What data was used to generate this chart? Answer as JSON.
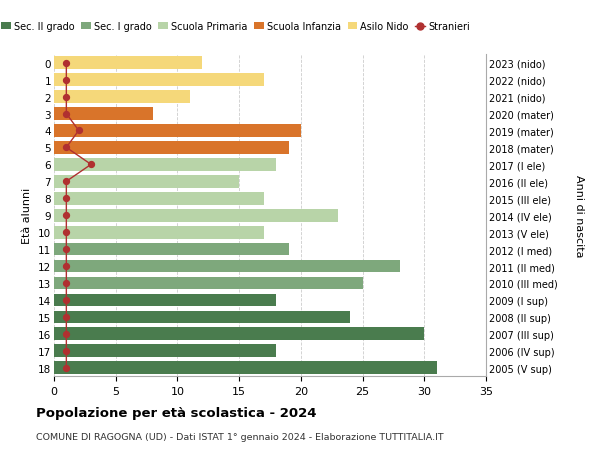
{
  "ages": [
    18,
    17,
    16,
    15,
    14,
    13,
    12,
    11,
    10,
    9,
    8,
    7,
    6,
    5,
    4,
    3,
    2,
    1,
    0
  ],
  "years": [
    "2005 (V sup)",
    "2006 (IV sup)",
    "2007 (III sup)",
    "2008 (II sup)",
    "2009 (I sup)",
    "2010 (III med)",
    "2011 (II med)",
    "2012 (I med)",
    "2013 (V ele)",
    "2014 (IV ele)",
    "2015 (III ele)",
    "2016 (II ele)",
    "2017 (I ele)",
    "2018 (mater)",
    "2019 (mater)",
    "2020 (mater)",
    "2021 (nido)",
    "2022 (nido)",
    "2023 (nido)"
  ],
  "bar_values": [
    31,
    18,
    30,
    24,
    18,
    25,
    28,
    19,
    17,
    23,
    17,
    15,
    18,
    19,
    20,
    8,
    11,
    17,
    12
  ],
  "bar_colors": [
    "#4a7c4e",
    "#4a7c4e",
    "#4a7c4e",
    "#4a7c4e",
    "#4a7c4e",
    "#7ea87c",
    "#7ea87c",
    "#7ea87c",
    "#b8d4a8",
    "#b8d4a8",
    "#b8d4a8",
    "#b8d4a8",
    "#b8d4a8",
    "#d9742a",
    "#d9742a",
    "#d9742a",
    "#f5d87a",
    "#f5d87a",
    "#f5d87a"
  ],
  "stranieri_values": [
    1,
    1,
    1,
    1,
    1,
    1,
    1,
    1,
    1,
    1,
    1,
    1,
    3,
    1,
    2,
    1,
    1,
    1,
    1
  ],
  "stranieri_color": "#b03030",
  "legend_labels": [
    "Sec. II grado",
    "Sec. I grado",
    "Scuola Primaria",
    "Scuola Infanzia",
    "Asilo Nido",
    "Stranieri"
  ],
  "legend_colors": [
    "#4a7c4e",
    "#7ea87c",
    "#b8d4a8",
    "#d9742a",
    "#f5d87a",
    "#b03030"
  ],
  "title": "Popolazione per età scolastica - 2024",
  "subtitle": "COMUNE DI RAGOGNA (UD) - Dati ISTAT 1° gennaio 2024 - Elaborazione TUTTITALIA.IT",
  "ylabel_left": "Età alunni",
  "ylabel_right": "Anni di nascita",
  "xlim": [
    0,
    35
  ],
  "xticks": [
    0,
    5,
    10,
    15,
    20,
    25,
    30,
    35
  ],
  "bg_color": "#ffffff",
  "grid_color": "#cccccc"
}
